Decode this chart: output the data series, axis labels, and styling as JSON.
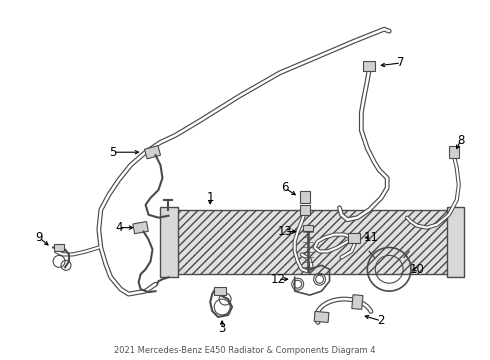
{
  "title": "2021 Mercedes-Benz E450 Radiator & Components Diagram 4",
  "bg_color": "#ffffff",
  "line_color": "#4a4a4a",
  "label_color": "#000000",
  "fig_width": 4.9,
  "fig_height": 3.6,
  "dpi": 100
}
